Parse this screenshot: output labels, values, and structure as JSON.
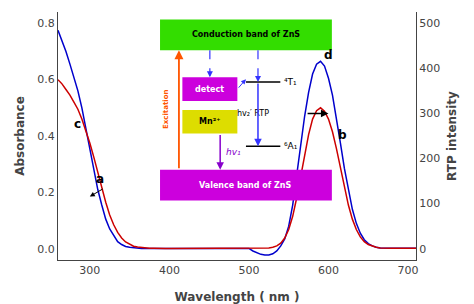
{
  "chart_data": {
    "type": "line",
    "xlabel": "Wavelength ( nm )",
    "ylabel": "Absorbance",
    "y2label": "RTP intensity",
    "x": [
      260,
      265,
      270,
      275,
      280,
      285,
      290,
      295,
      300,
      305,
      310,
      315,
      320,
      325,
      330,
      335,
      340,
      345,
      350,
      355,
      360,
      365,
      370,
      375,
      380,
      385,
      390,
      395,
      400,
      405,
      410,
      415,
      420,
      425,
      430,
      435,
      440,
      445,
      450,
      455,
      460,
      465,
      470,
      475,
      480,
      485,
      490,
      495,
      500,
      505,
      510,
      515,
      520,
      525,
      530,
      535,
      540,
      545,
      550,
      555,
      560,
      565,
      570,
      575,
      580,
      585,
      590,
      595,
      600,
      605,
      610,
      615,
      620,
      625,
      630,
      635,
      640,
      645,
      650,
      655,
      660,
      665,
      670,
      675,
      680,
      685,
      690,
      695,
      700,
      705,
      710
    ],
    "series": [
      {
        "color": "#0000cc",
        "values": [
          0.775,
          0.74,
          0.7,
          0.655,
          0.61,
          0.56,
          0.5,
          0.43,
          0.36,
          0.28,
          0.21,
          0.155,
          0.105,
          0.07,
          0.045,
          0.025,
          0.015,
          0.008,
          0.005,
          0.003,
          0.002,
          0.001,
          0.001,
          0.001,
          0.001,
          0.001,
          0.001,
          0.001,
          0.001,
          0.001,
          0.001,
          0.001,
          0.001,
          0.001,
          0.001,
          0.001,
          0.001,
          0.001,
          0.001,
          0.001,
          0.001,
          0.001,
          0.001,
          0.001,
          0.001,
          0.001,
          0.001,
          0.001,
          0.001,
          -0.008,
          -0.015,
          -0.02,
          -0.022,
          -0.022,
          -0.018,
          -0.008,
          0.01,
          0.035,
          0.08,
          0.155,
          0.26,
          0.37,
          0.47,
          0.555,
          0.62,
          0.655,
          0.665,
          0.648,
          0.605,
          0.545,
          0.465,
          0.375,
          0.285,
          0.205,
          0.14,
          0.09,
          0.055,
          0.032,
          0.018,
          0.01,
          0.005,
          0.003,
          0.002,
          0.002,
          0.002,
          0.002,
          0.002,
          0.002,
          0.002,
          0.002,
          0.002
        ]
      },
      {
        "color": "#cc0000",
        "values": [
          0.6,
          0.585,
          0.565,
          0.545,
          0.52,
          0.495,
          0.46,
          0.42,
          0.375,
          0.325,
          0.27,
          0.215,
          0.165,
          0.12,
          0.085,
          0.058,
          0.038,
          0.024,
          0.015,
          0.009,
          0.006,
          0.004,
          0.003,
          0.002,
          0.002,
          0.001,
          0.001,
          0.001,
          0.001,
          0.001,
          0.001,
          0.001,
          0.001,
          0.001,
          0.001,
          0.001,
          0.001,
          0.001,
          0.001,
          0.001,
          0.001,
          0.001,
          0.001,
          0.001,
          0.001,
          0.001,
          0.001,
          0.001,
          0.001,
          0.001,
          0.001,
          0.001,
          0.002,
          0.003,
          0.005,
          0.01,
          0.02,
          0.038,
          0.068,
          0.115,
          0.18,
          0.255,
          0.335,
          0.405,
          0.46,
          0.49,
          0.5,
          0.488,
          0.46,
          0.415,
          0.355,
          0.285,
          0.215,
          0.155,
          0.105,
          0.068,
          0.042,
          0.025,
          0.015,
          0.009,
          0.005,
          0.003,
          0.002,
          0.002,
          0.002,
          0.002,
          0.002,
          0.002,
          0.002,
          0.002,
          0.002
        ]
      }
    ],
    "xlim": [
      260,
      710
    ],
    "ylim": [
      -0.04,
      0.84
    ],
    "y2lim": [
      -25,
      525
    ],
    "xticks": [
      300,
      400,
      500,
      600,
      700
    ],
    "yticks": [
      {
        "value": 0.0,
        "label": "0.0"
      },
      0.2,
      0.4,
      0.6,
      0.8
    ],
    "y2ticks": [
      0,
      100,
      200,
      300,
      400,
      500
    ],
    "grid": false,
    "annotations": [
      "c",
      "a",
      "d",
      "b",
      "Conduction band of ZnS",
      "Valence band of ZnS",
      "detect",
      "Mn²⁺",
      "Excitation",
      "⁴T₁",
      "⁶A₁",
      "hv₁",
      "hv₂′ RTP"
    ]
  }
}
